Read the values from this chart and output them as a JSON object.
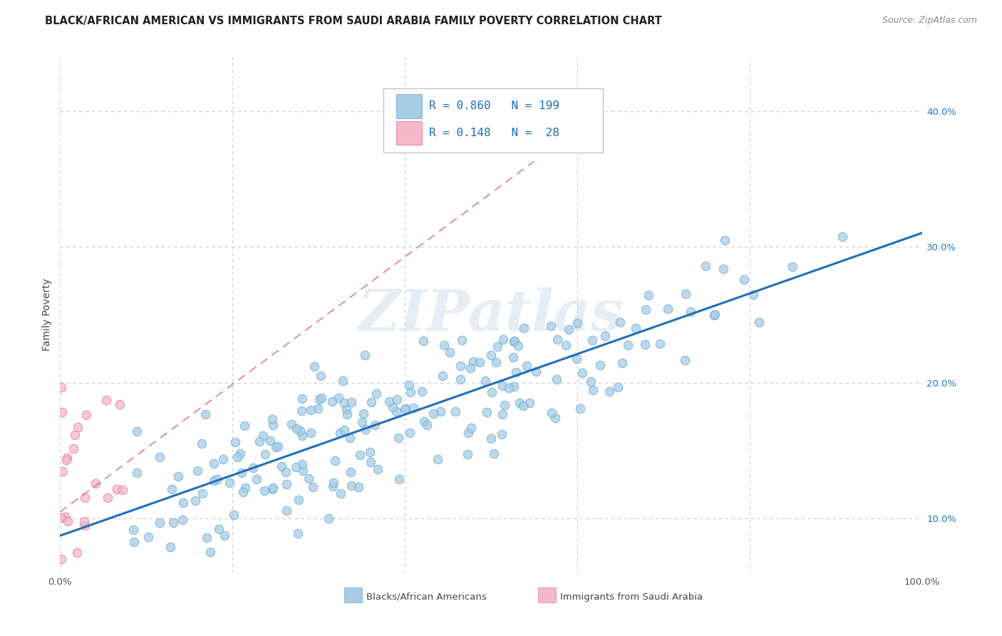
{
  "title": "BLACK/AFRICAN AMERICAN VS IMMIGRANTS FROM SAUDI ARABIA FAMILY POVERTY CORRELATION CHART",
  "source": "Source: ZipAtlas.com",
  "ylabel": "Family Poverty",
  "blue_color": "#a8cce4",
  "pink_color": "#f4b8c8",
  "blue_edge_color": "#6aafd6",
  "pink_edge_color": "#e87aa0",
  "blue_line_color": "#1f6fba",
  "pink_line_color": "#d46060",
  "watermark": "ZIPatlas",
  "background_color": "#ffffff",
  "grid_color": "#cccccc",
  "R1": 0.86,
  "N1": 199,
  "R2": 0.148,
  "N2": 28,
  "seed": 42,
  "ymin": 0.06,
  "ymax": 0.44,
  "xmin": 0.0,
  "xmax": 1.0,
  "ytick_vals": [
    0.1,
    0.2,
    0.3,
    0.4
  ],
  "ytick_labels": [
    "10.0%",
    "20.0%",
    "30.0%",
    "40.0%"
  ],
  "xtick_vals": [
    0.0,
    0.2,
    0.4,
    0.6,
    0.8,
    1.0
  ],
  "xtick_labels": [
    "0.0%",
    "",
    "",
    "",
    "",
    "100.0%"
  ]
}
